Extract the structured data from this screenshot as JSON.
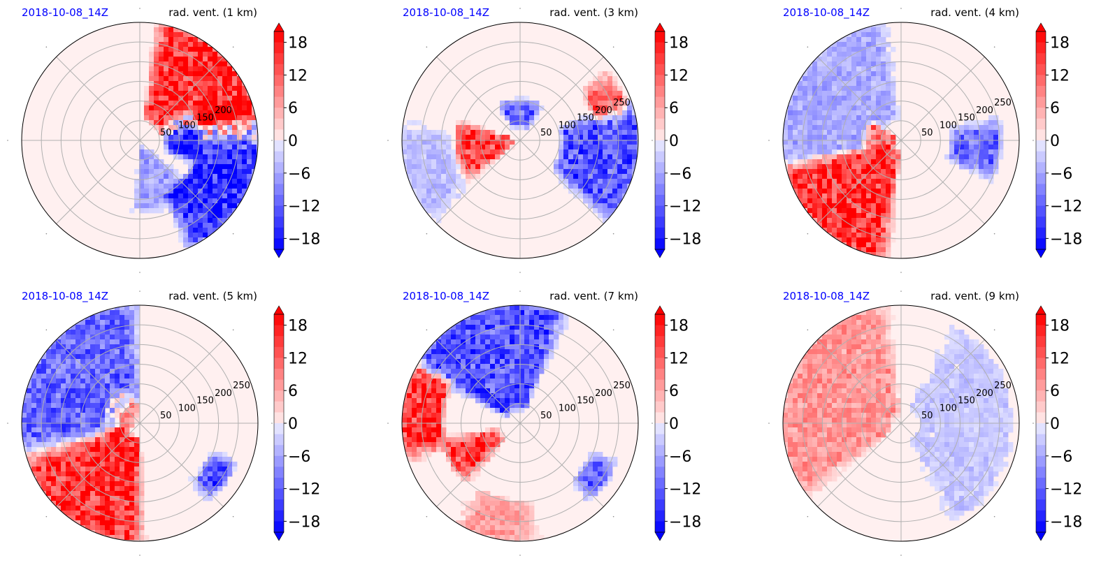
{
  "figure": {
    "panels": [
      {
        "date": "2018-10-08_14Z",
        "title": "rad. vent. (1 km)"
      },
      {
        "date": "2018-10-08_14Z",
        "title": "rad. vent. (3 km)"
      },
      {
        "date": "2018-10-08_14Z",
        "title": "rad. vent. (4 km)"
      },
      {
        "date": "2018-10-08_14Z",
        "title": "rad. vent. (5 km)"
      },
      {
        "date": "2018-10-08_14Z",
        "title": "rad. vent. (7 km)"
      },
      {
        "date": "2018-10-08_14Z",
        "title": "rad. vent. (9 km)"
      }
    ]
  },
  "colors": {
    "date_text": "#0000ff",
    "positive": "#ff0000",
    "negative": "#0000ff",
    "grid": "#b0b0b0",
    "outline": "#000000"
  },
  "chart_data": [
    {
      "type": "heatmap",
      "projection": "polar",
      "title": "rad. vent. (1 km)",
      "subtitle": "2018-10-08_14Z",
      "radial_ticks": [
        "50",
        "100",
        "150",
        "200"
      ],
      "radial_tick_values": [
        50,
        100,
        150,
        200
      ],
      "rmax": 300,
      "grid": true,
      "colorbar": {
        "ticks": [
          "18",
          "12",
          "6",
          "0",
          "−6",
          "−12",
          "−18"
        ],
        "range": [
          -20,
          20
        ],
        "extend": "both"
      },
      "features": [
        {
          "sign": 1,
          "strength": 20,
          "r_range": [
            60,
            300
          ],
          "theta_range": [
            15,
            78
          ]
        },
        {
          "sign": 1,
          "strength": 20,
          "r_range": [
            160,
            300
          ],
          "theta_range": [
            0,
            20
          ]
        },
        {
          "sign": -1,
          "strength": 20,
          "r_range": [
            150,
            300
          ],
          "theta_range": [
            -62,
            12
          ]
        },
        {
          "sign": -1,
          "strength": 20,
          "r_range": [
            70,
            150
          ],
          "theta_range": [
            -20,
            30
          ]
        },
        {
          "sign": -1,
          "strength": 8,
          "r_range": [
            20,
            180
          ],
          "theta_range": [
            -92,
            -45
          ]
        }
      ]
    },
    {
      "type": "heatmap",
      "projection": "polar",
      "title": "rad. vent. (3 km)",
      "subtitle": "2018-10-08_14Z",
      "radial_ticks": [
        "50",
        "100",
        "150",
        "200",
        "250"
      ],
      "radial_tick_values": [
        50,
        100,
        150,
        200,
        250
      ],
      "rmax": 300,
      "grid": true,
      "colorbar": {
        "ticks": [
          "18",
          "12",
          "6",
          "0",
          "−6",
          "−12",
          "−18"
        ],
        "range": [
          -20,
          20
        ],
        "extend": "both"
      },
      "features": [
        {
          "sign": 1,
          "strength": 18,
          "r_range": [
            20,
            160
          ],
          "theta_range": [
            165,
            215
          ]
        },
        {
          "sign": 1,
          "strength": 16,
          "r_range": [
            200,
            280
          ],
          "theta_range": [
            15,
            35
          ]
        },
        {
          "sign": -1,
          "strength": 14,
          "r_range": [
            40,
            100
          ],
          "theta_range": [
            60,
            120
          ]
        },
        {
          "sign": -1,
          "strength": 16,
          "r_range": [
            110,
            300
          ],
          "theta_range": [
            -40,
            15
          ]
        },
        {
          "sign": -1,
          "strength": 5,
          "r_range": [
            180,
            300
          ],
          "theta_range": [
            175,
            220
          ]
        }
      ]
    },
    {
      "type": "heatmap",
      "projection": "polar",
      "title": "rad. vent. (4 km)",
      "subtitle": "2018-10-08_14Z",
      "radial_ticks": [
        "50",
        "100",
        "150",
        "200",
        "250"
      ],
      "radial_tick_values": [
        50,
        100,
        150,
        200,
        250
      ],
      "rmax": 300,
      "grid": true,
      "colorbar": {
        "ticks": [
          "18",
          "12",
          "6",
          "0",
          "−6",
          "−12",
          "−18"
        ],
        "range": [
          -20,
          20
        ],
        "extend": "both"
      },
      "features": [
        {
          "sign": 1,
          "strength": 20,
          "r_range": [
            30,
            300
          ],
          "theta_range": [
            195,
            260
          ]
        },
        {
          "sign": 1,
          "strength": 16,
          "r_range": [
            10,
            90
          ],
          "theta_range": [
            150,
            195
          ]
        },
        {
          "sign": -1,
          "strength": 7,
          "r_range": [
            60,
            300
          ],
          "theta_range": [
            100,
            190
          ]
        },
        {
          "sign": -1,
          "strength": 14,
          "r_range": [
            130,
            250
          ],
          "theta_range": [
            -20,
            10
          ]
        }
      ]
    },
    {
      "type": "heatmap",
      "projection": "polar",
      "title": "rad. vent. (5 km)",
      "subtitle": "2018-10-08_14Z",
      "radial_ticks": [
        "50",
        "100",
        "150",
        "200",
        "250"
      ],
      "radial_tick_values": [
        50,
        100,
        150,
        200,
        250
      ],
      "rmax": 300,
      "grid": true,
      "colorbar": {
        "ticks": [
          "18",
          "12",
          "6",
          "0",
          "−6",
          "−12",
          "−18"
        ],
        "range": [
          -20,
          20
        ],
        "extend": "both"
      },
      "features": [
        {
          "sign": 1,
          "strength": 20,
          "r_range": [
            40,
            300
          ],
          "theta_range": [
            200,
            268
          ]
        },
        {
          "sign": -1,
          "strength": 14,
          "r_range": [
            60,
            300
          ],
          "theta_range": [
            95,
            190
          ]
        },
        {
          "sign": 1,
          "strength": 10,
          "r_range": [
            20,
            90
          ],
          "theta_range": [
            100,
            200
          ]
        },
        {
          "sign": -1,
          "strength": 16,
          "r_range": [
            200,
            260
          ],
          "theta_range": [
            -45,
            -25
          ]
        }
      ]
    },
    {
      "type": "heatmap",
      "projection": "polar",
      "title": "rad. vent. (7 km)",
      "subtitle": "2018-10-08_14Z",
      "radial_ticks": [
        "50",
        "100",
        "150",
        "200",
        "250"
      ],
      "radial_tick_values": [
        50,
        100,
        150,
        200,
        250
      ],
      "rmax": 300,
      "grid": true,
      "colorbar": {
        "ticks": [
          "18",
          "12",
          "6",
          "0",
          "−6",
          "−12",
          "−18"
        ],
        "range": [
          -20,
          20
        ],
        "extend": "both"
      },
      "features": [
        {
          "sign": -1,
          "strength": 16,
          "r_range": [
            40,
            300
          ],
          "theta_range": [
            70,
            150
          ]
        },
        {
          "sign": 1,
          "strength": 20,
          "r_range": [
            200,
            300
          ],
          "theta_range": [
            150,
            195
          ]
        },
        {
          "sign": 1,
          "strength": 18,
          "r_range": [
            60,
            200
          ],
          "theta_range": [
            195,
            225
          ]
        },
        {
          "sign": 1,
          "strength": 8,
          "r_range": [
            200,
            300
          ],
          "theta_range": [
            240,
            275
          ]
        },
        {
          "sign": -1,
          "strength": 16,
          "r_range": [
            200,
            260
          ],
          "theta_range": [
            -45,
            -25
          ]
        }
      ]
    },
    {
      "type": "heatmap",
      "projection": "polar",
      "title": "rad. vent. (9 km)",
      "subtitle": "2018-10-08_14Z",
      "radial_ticks": [
        "50",
        "100",
        "150",
        "200",
        "250"
      ],
      "radial_tick_values": [
        50,
        100,
        150,
        200,
        250
      ],
      "rmax": 300,
      "grid": true,
      "colorbar": {
        "ticks": [
          "18",
          "12",
          "6",
          "0",
          "−6",
          "−12",
          "−18"
        ],
        "range": [
          -20,
          20
        ],
        "extend": "both"
      },
      "features": [
        {
          "sign": 1,
          "strength": 9,
          "r_range": [
            30,
            300
          ],
          "theta_range": [
            100,
            215
          ]
        },
        {
          "sign": -1,
          "strength": 4,
          "r_range": [
            50,
            280
          ],
          "theta_range": [
            -60,
            60
          ]
        }
      ]
    }
  ]
}
